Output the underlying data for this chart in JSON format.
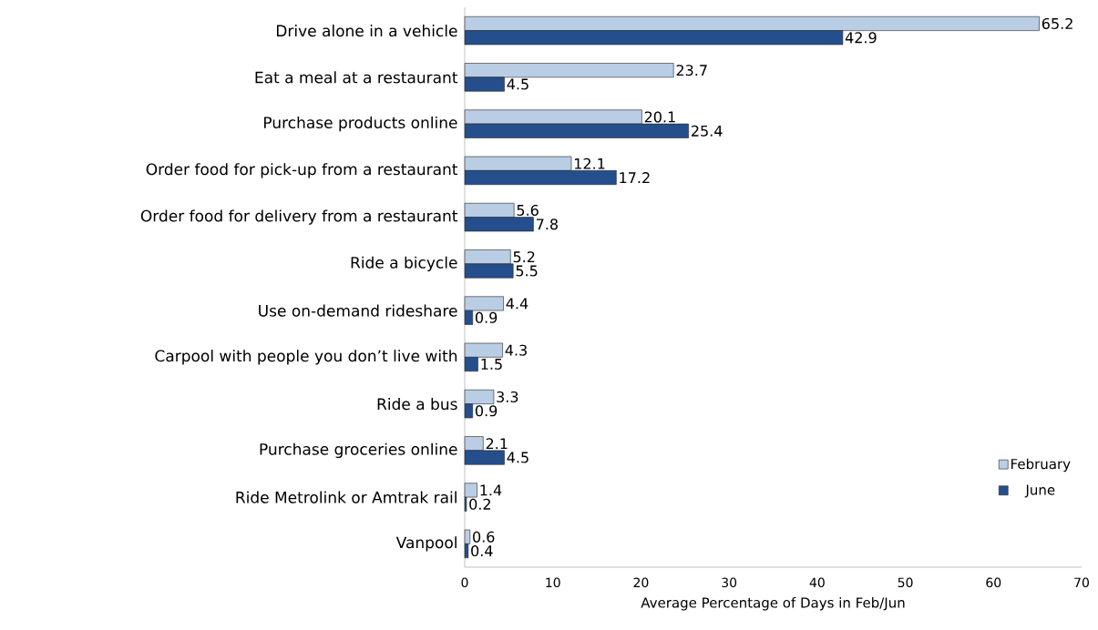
{
  "chart_data": {
    "type": "bar",
    "orientation": "horizontal",
    "xlabel": "Average Percentage of Days in Feb/Jun",
    "categories": [
      "Drive alone in a vehicle",
      "Eat a meal at a restaurant",
      "Purchase products online",
      "Order food for pick-up from a restaurant",
      "Order food for delivery from a restaurant",
      "Ride a bicycle",
      "Use on-demand rideshare",
      "Carpool with people you don’t live with",
      "Ride a bus",
      "Purchase groceries online",
      "Ride Metrolink or Amtrak rail",
      "Vanpool"
    ],
    "series": [
      {
        "name": "February",
        "color": "#b9cde5",
        "values": [
          65.2,
          23.7,
          20.1,
          12.1,
          5.6,
          5.2,
          4.4,
          4.3,
          3.3,
          2.1,
          1.4,
          0.6
        ]
      },
      {
        "name": "June",
        "color": "#244f8c",
        "values": [
          42.9,
          4.5,
          25.4,
          17.2,
          7.8,
          5.5,
          0.9,
          1.5,
          0.9,
          4.5,
          0.2,
          0.4
        ]
      }
    ],
    "xlim": [
      0,
      70
    ],
    "xticks": [
      0,
      10,
      20,
      30,
      40,
      50,
      60,
      70
    ],
    "data_labels": true,
    "legend": "bottom right",
    "grid": false
  }
}
